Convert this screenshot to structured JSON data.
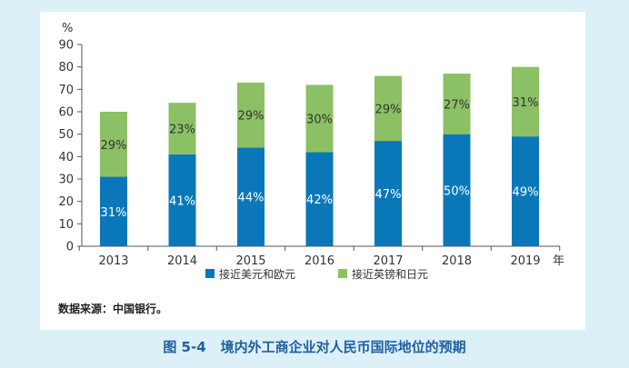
{
  "chart_data": {
    "type": "bar",
    "stacked": true,
    "categories": [
      "2013",
      "2014",
      "2015",
      "2016",
      "2017",
      "2018",
      "2019"
    ],
    "series": [
      {
        "name": "接近美元和欧元",
        "color": "#0a78b8",
        "values": [
          31,
          41,
          44,
          42,
          47,
          50,
          49
        ],
        "labels": [
          "31%",
          "41%",
          "44%",
          "42%",
          "47%",
          "50%",
          "49%"
        ]
      },
      {
        "name": "接近英镑和日元",
        "color": "#8cc064",
        "values": [
          29,
          23,
          29,
          30,
          29,
          27,
          31
        ],
        "labels": [
          "29%",
          "23%",
          "29%",
          "30%",
          "29%",
          "27%",
          "31%"
        ]
      }
    ],
    "ylim": [
      0,
      90
    ],
    "yticks": [
      0,
      10,
      20,
      30,
      40,
      50,
      60,
      70,
      80,
      90
    ],
    "ylabel": "%",
    "xlabel": "年",
    "legend_position": "bottom-center",
    "grid": false
  },
  "source_note": "数据来源：中国银行。",
  "caption": {
    "figure_number": "图 5-4",
    "title": "境内外工商企业对人民币国际地位的预期"
  }
}
